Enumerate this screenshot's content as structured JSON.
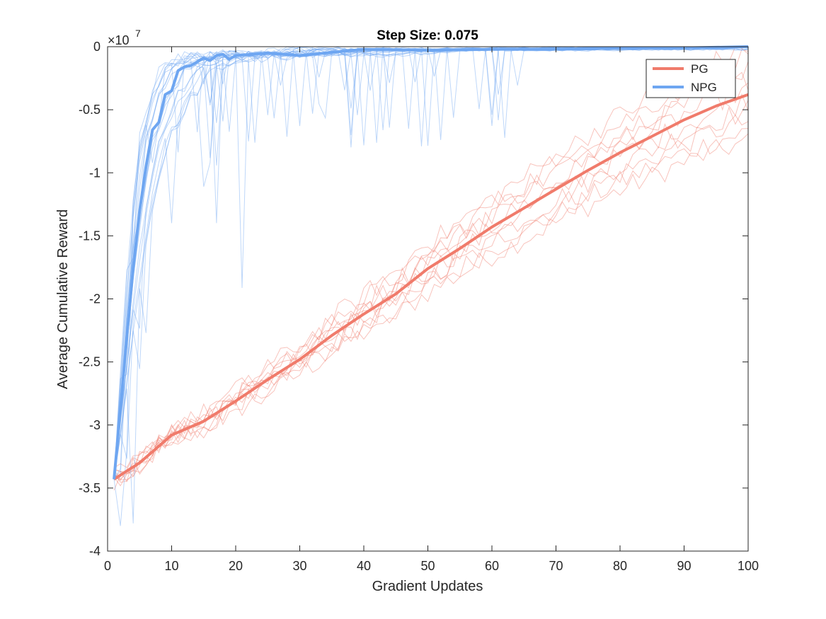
{
  "chart_data": {
    "type": "line",
    "title": "Step Size: 0.075",
    "xlabel": "Gradient Updates",
    "ylabel": "Average Cumulative Reward",
    "y_exponent_label": "×10",
    "y_exponent": "7",
    "y_scale_factor": 10000000,
    "xlim": [
      0,
      100
    ],
    "ylim": [
      -4,
      0
    ],
    "xticks": [
      0,
      10,
      20,
      30,
      40,
      50,
      60,
      70,
      80,
      90,
      100
    ],
    "xtick_labels": [
      "0",
      "10",
      "20",
      "30",
      "40",
      "50",
      "60",
      "70",
      "80",
      "90",
      "100"
    ],
    "yticks": [
      0,
      -0.5,
      -1,
      -1.5,
      -2,
      -2.5,
      -3,
      -3.5,
      -4
    ],
    "ytick_labels": [
      "0",
      "-0.5",
      "-1",
      "-1.5",
      "-2",
      "-2.5",
      "-3",
      "-3.5",
      "-4"
    ],
    "grid": false,
    "legend_position": "top-right",
    "series": [
      {
        "name": "PG",
        "color": "#f07b6b",
        "mean": {
          "x": [
            1,
            5,
            10,
            15,
            20,
            25,
            30,
            35,
            40,
            45,
            50,
            55,
            60,
            65,
            70,
            75,
            80,
            85,
            90,
            95,
            100
          ],
          "y": [
            -3.43,
            -3.3,
            -3.08,
            -2.97,
            -2.81,
            -2.64,
            -2.48,
            -2.29,
            -2.12,
            -1.96,
            -1.76,
            -1.6,
            -1.43,
            -1.28,
            -1.13,
            -0.98,
            -0.84,
            -0.71,
            -0.58,
            -0.47,
            -0.38
          ]
        },
        "run_count": 10,
        "runs_final_range": [
          -1.13,
          -0.02
        ]
      },
      {
        "name": "NPG",
        "color": "#6ea6f1",
        "mean": {
          "x": [
            1,
            2,
            3,
            4,
            5,
            6,
            7,
            8,
            9,
            10,
            11,
            12,
            13,
            14,
            15,
            16,
            17,
            18,
            19,
            20,
            25,
            30,
            40,
            50,
            60,
            70,
            80,
            90,
            100
          ],
          "y": [
            -3.43,
            -2.88,
            -2.3,
            -1.75,
            -1.3,
            -0.95,
            -0.66,
            -0.6,
            -0.38,
            -0.35,
            -0.19,
            -0.16,
            -0.15,
            -0.12,
            -0.09,
            -0.11,
            -0.07,
            -0.06,
            -0.1,
            -0.07,
            -0.05,
            -0.07,
            -0.02,
            -0.03,
            -0.02,
            -0.02,
            -0.01,
            -0.01,
            0
          ]
        },
        "run_count": 20,
        "runs_final_range": [
          -0.05,
          0
        ]
      }
    ]
  }
}
